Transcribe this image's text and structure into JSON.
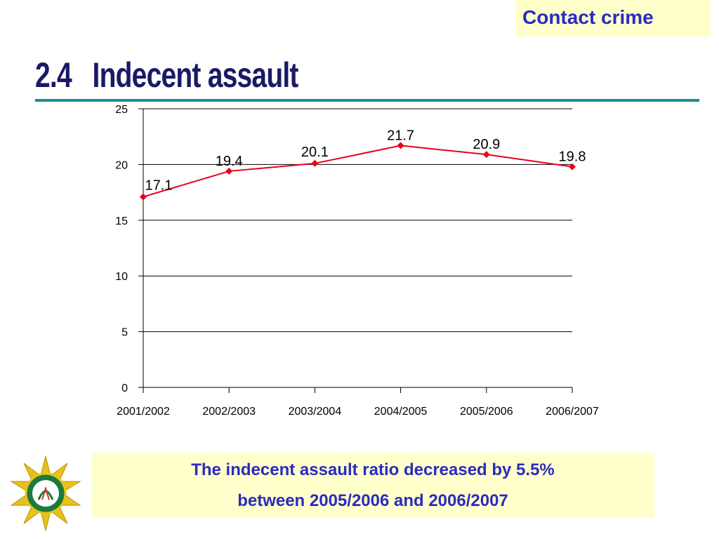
{
  "header": {
    "tag": "Contact crime",
    "section_number": "2.4",
    "title": "Indecent assault"
  },
  "chart_data": {
    "type": "line",
    "categories": [
      "2001/2002",
      "2002/2003",
      "2003/2004",
      "2004/2005",
      "2005/2006",
      "2006/2007"
    ],
    "series": [
      {
        "values": [
          17.1,
          19.4,
          20.1,
          21.7,
          20.9,
          19.8
        ],
        "color": "#e8001c"
      }
    ],
    "data_labels": [
      "17.1",
      "19.4",
      "20.1",
      "21.7",
      "20.9",
      "19.8"
    ],
    "y_ticks": [
      0,
      5,
      10,
      15,
      20,
      25
    ],
    "ylim": [
      0,
      25
    ],
    "grid": true,
    "legend": "none"
  },
  "note": {
    "line1": "The indecent assault ratio decreased by 5.5%",
    "line2": "between 2005/2006 and 2006/2007"
  },
  "colors": {
    "accent": "#2b2bbf",
    "title": "#1a1a66",
    "rule": "#1f8c8c",
    "highlight_bg": "#ffffcc"
  }
}
